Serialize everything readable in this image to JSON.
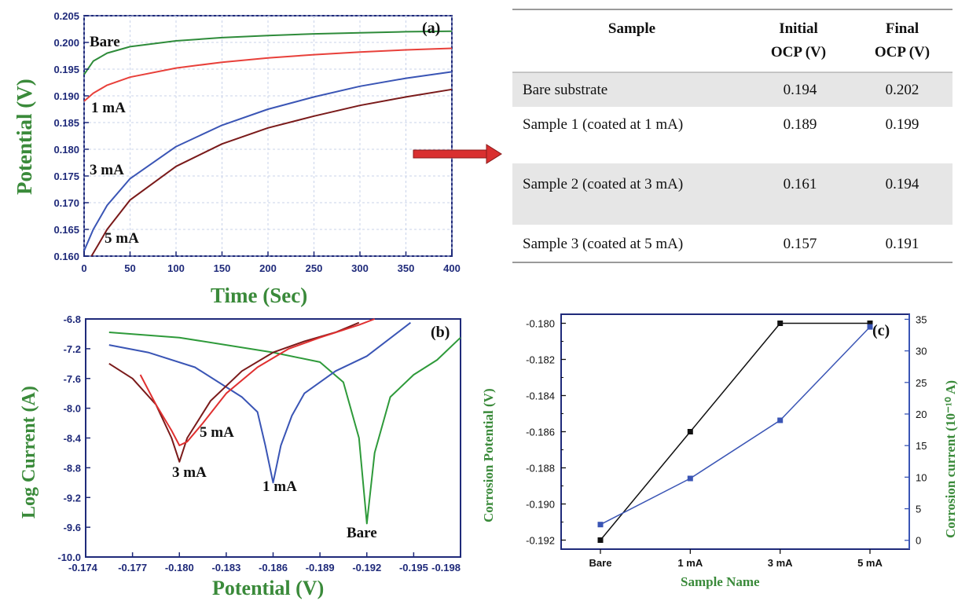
{
  "chart_data": [
    {
      "type": "line",
      "panel_label": "(a)",
      "xlabel": "Time (Sec)",
      "ylabel": "Potential (V)",
      "xlim": [
        0,
        400
      ],
      "ylim": [
        0.16,
        0.205
      ],
      "x_ticks": [
        "0",
        "50",
        "100",
        "150",
        "200",
        "250",
        "300",
        "350",
        "400"
      ],
      "y_ticks": [
        "0.160",
        "0.165",
        "0.170",
        "0.175",
        "0.180",
        "0.185",
        "0.190",
        "0.195",
        "0.200",
        "0.205"
      ],
      "grid": true,
      "series": [
        {
          "name": "Bare",
          "color": "#2e8b3a",
          "x": [
            0,
            10,
            25,
            50,
            100,
            150,
            200,
            250,
            300,
            350,
            400
          ],
          "y": [
            0.194,
            0.1965,
            0.198,
            0.1992,
            0.2003,
            0.2009,
            0.2013,
            0.2016,
            0.2018,
            0.202,
            0.2021
          ]
        },
        {
          "name": "1 mA",
          "color": "#e8403a",
          "x": [
            0,
            10,
            25,
            50,
            100,
            150,
            200,
            250,
            300,
            350,
            400
          ],
          "y": [
            0.189,
            0.1905,
            0.192,
            0.1935,
            0.1952,
            0.1963,
            0.1971,
            0.1977,
            0.1982,
            0.1986,
            0.1989
          ]
        },
        {
          "name": "3 mA",
          "color": "#3a55b5",
          "x": [
            0,
            10,
            25,
            50,
            100,
            150,
            200,
            250,
            300,
            350,
            400
          ],
          "y": [
            0.161,
            0.165,
            0.1695,
            0.1745,
            0.1805,
            0.1845,
            0.1875,
            0.1898,
            0.1918,
            0.1933,
            0.1945
          ]
        },
        {
          "name": "5 mA",
          "color": "#7a1a1a",
          "x": [
            8,
            15,
            25,
            50,
            100,
            150,
            200,
            250,
            300,
            350,
            400
          ],
          "y": [
            0.16,
            0.162,
            0.165,
            0.1705,
            0.1768,
            0.181,
            0.184,
            0.1862,
            0.1882,
            0.1898,
            0.1912
          ]
        }
      ]
    },
    {
      "type": "line",
      "panel_label": "(b)",
      "xlabel": "Potential (V)",
      "ylabel": "Log Current (A)",
      "xlim": [
        -0.174,
        -0.198
      ],
      "ylim": [
        -10.0,
        -6.8
      ],
      "x_ticks": [
        "-0.174",
        "-0.177",
        "-0.180",
        "-0.183",
        "-0.186",
        "-0.189",
        "-0.192",
        "-0.195",
        "-0.198"
      ],
      "y_ticks": [
        "-6.8",
        "-7.2",
        "-7.6",
        "-8.0",
        "-8.4",
        "-8.8",
        "-9.2",
        "-9.6",
        "-10.0"
      ],
      "grid": false,
      "series": [
        {
          "name": "Bare",
          "color": "#2e9a3a",
          "x": [
            -0.1755,
            -0.18,
            -0.186,
            -0.189,
            -0.1905,
            -0.1915,
            -0.192,
            -0.1925,
            -0.1935,
            -0.195,
            -0.1965,
            -0.198
          ],
          "y": [
            -6.98,
            -7.05,
            -7.25,
            -7.38,
            -7.65,
            -8.4,
            -9.55,
            -8.6,
            -7.85,
            -7.55,
            -7.35,
            -7.05
          ]
        },
        {
          "name": "1 mA",
          "color": "#3a55b5",
          "x": [
            -0.1755,
            -0.178,
            -0.181,
            -0.184,
            -0.185,
            -0.1855,
            -0.186,
            -0.1865,
            -0.1872,
            -0.188,
            -0.19,
            -0.192,
            -0.1948
          ],
          "y": [
            -7.15,
            -7.25,
            -7.45,
            -7.85,
            -8.05,
            -8.5,
            -9.0,
            -8.5,
            -8.1,
            -7.8,
            -7.5,
            -7.3,
            -6.85
          ]
        },
        {
          "name": "3 mA",
          "color": "#7a1a1a",
          "x": [
            -0.1755,
            -0.177,
            -0.1785,
            -0.1795,
            -0.18,
            -0.1805,
            -0.182,
            -0.184,
            -0.186,
            -0.188,
            -0.19,
            -0.1915
          ],
          "y": [
            -7.4,
            -7.6,
            -7.95,
            -8.4,
            -8.72,
            -8.4,
            -7.9,
            -7.5,
            -7.25,
            -7.1,
            -6.98,
            -6.85
          ]
        },
        {
          "name": "5 mA",
          "color": "#e03030",
          "x": [
            -0.1775,
            -0.1785,
            -0.1795,
            -0.18,
            -0.1805,
            -0.1815,
            -0.183,
            -0.185,
            -0.187,
            -0.189,
            -0.1915,
            -0.1925
          ],
          "y": [
            -7.55,
            -7.95,
            -8.3,
            -8.5,
            -8.45,
            -8.2,
            -7.8,
            -7.45,
            -7.2,
            -7.05,
            -6.88,
            -6.8
          ]
        }
      ]
    },
    {
      "type": "line",
      "panel_label": "(c)",
      "xlabel": "Sample Name",
      "ylabel": "Corrosion Potential (V)",
      "y2label": "Corrosion current (10⁻¹⁰ A)",
      "categories": [
        "Bare",
        "1 mA",
        "3 mA",
        "5 mA"
      ],
      "ylim": [
        -0.1925,
        -0.1795
      ],
      "y2lim": [
        -1.4,
        35.8
      ],
      "y_ticks": [
        "-0.180",
        "-0.182",
        "-0.184",
        "-0.186",
        "-0.188",
        "-0.190",
        "-0.192"
      ],
      "y2_ticks": [
        "0",
        "5",
        "10",
        "15",
        "20",
        "25",
        "30",
        "35"
      ],
      "series": [
        {
          "name": "Corrosion Potential",
          "axis": "left",
          "color": "#111111",
          "values": [
            -0.192,
            -0.186,
            -0.18,
            -0.18
          ]
        },
        {
          "name": "Corrosion current",
          "axis": "right",
          "color": "#3a55b5",
          "values": [
            2.5,
            9.8,
            19.0,
            33.8
          ]
        }
      ]
    }
  ],
  "curve_labels_a": [
    "Bare",
    "1 mA",
    "3 mA",
    "5 mA"
  ],
  "curve_labels_b": [
    "5 mA",
    "3 mA",
    "1 mA",
    "Bare"
  ],
  "table": {
    "headers": [
      "Sample",
      "Initial",
      "OCP (V)",
      "Final",
      "OCP (V)"
    ],
    "rows": [
      [
        "Bare substrate",
        "0.194",
        "0.202"
      ],
      [
        "Sample  1 (coated at 1 mA)",
        "0.189",
        "0.199"
      ],
      [
        "Sample  2 (coated at 3 mA)",
        "0.161",
        "0.194"
      ],
      [
        "Sample  3 (coated at 5 mA)",
        "0.157",
        "0.191"
      ]
    ]
  },
  "colors": {
    "axis": "#1f2a7a",
    "title_green": "#3a8a3a",
    "arrow": "#d93030",
    "row_shade": "#e6e6e6"
  }
}
